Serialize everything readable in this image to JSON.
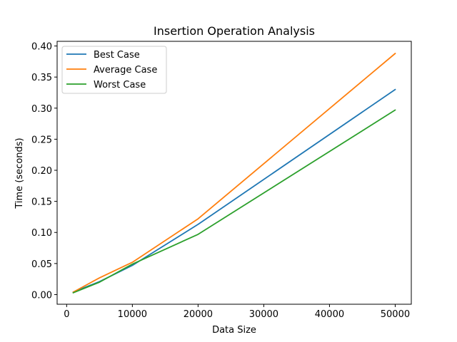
{
  "chart_data": {
    "type": "line",
    "title": "Insertion Operation Analysis",
    "xlabel": "Data Size",
    "ylabel": "Time (seconds)",
    "x": [
      1000,
      5000,
      10000,
      20000,
      50000
    ],
    "series": [
      {
        "name": "Best Case",
        "color": "#1f77b4",
        "values": [
          0.004,
          0.021,
          0.047,
          0.113,
          0.33
        ]
      },
      {
        "name": "Average Case",
        "color": "#ff7f0e",
        "values": [
          0.004,
          0.027,
          0.052,
          0.122,
          0.388
        ]
      },
      {
        "name": "Worst Case",
        "color": "#2ca02c",
        "values": [
          0.003,
          0.02,
          0.049,
          0.097,
          0.297
        ]
      }
    ],
    "xlim": [
      -1450,
      52450
    ],
    "ylim": [
      -0.0155,
      0.4075
    ],
    "xticks": [
      0,
      10000,
      20000,
      30000,
      40000,
      50000
    ],
    "xtick_labels": [
      "0",
      "10000",
      "20000",
      "30000",
      "40000",
      "50000"
    ],
    "yticks": [
      0.0,
      0.05,
      0.1,
      0.15,
      0.2,
      0.25,
      0.3,
      0.35,
      0.4
    ],
    "ytick_labels": [
      "0.00",
      "0.05",
      "0.10",
      "0.15",
      "0.20",
      "0.25",
      "0.30",
      "0.35",
      "0.40"
    ],
    "grid": false,
    "legend_position": "upper-left"
  }
}
